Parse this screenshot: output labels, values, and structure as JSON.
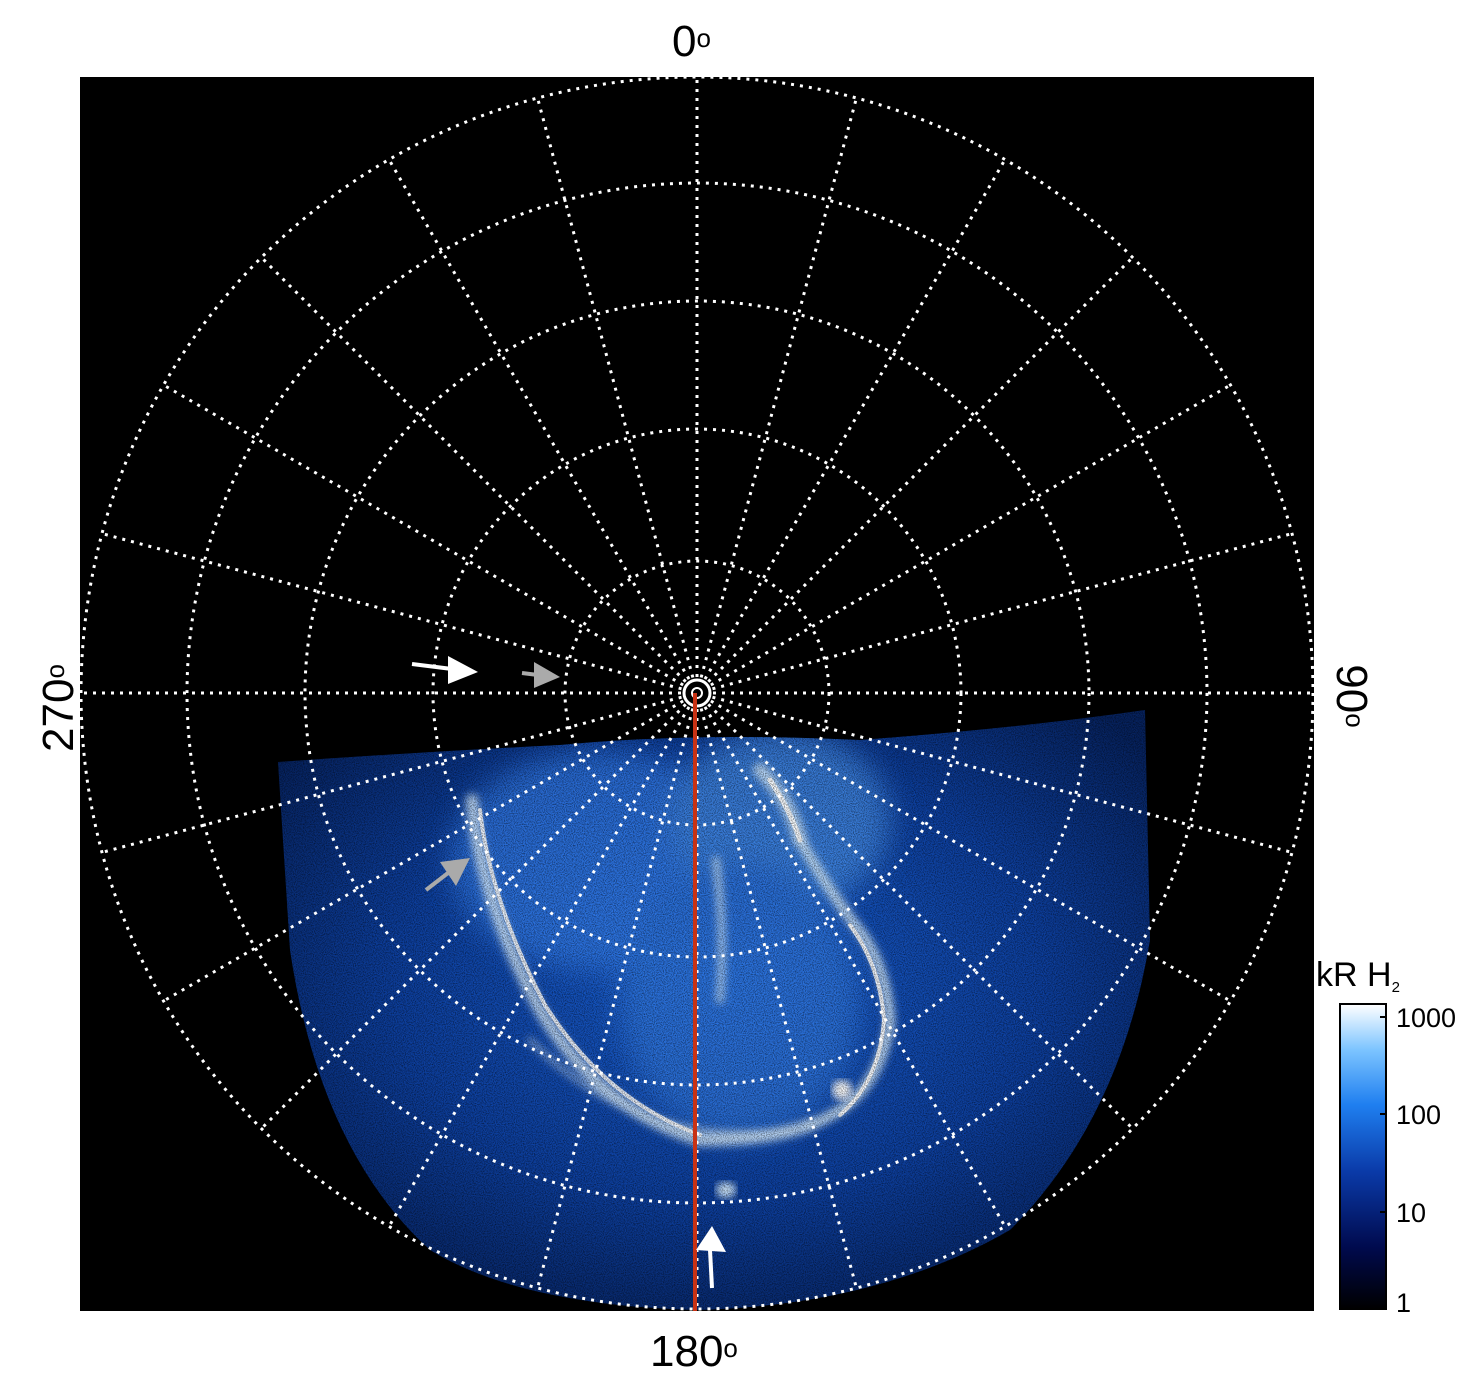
{
  "figure": {
    "direction_labels": {
      "top": "0",
      "right": "90",
      "bottom": "180",
      "left": "270",
      "degree_symbol": "o"
    },
    "colorbar": {
      "title_main": "kR H",
      "title_sub": "2",
      "ticks": [
        "1000",
        "100",
        "10",
        "1"
      ],
      "scale": "log",
      "range": [
        1,
        1500
      ],
      "colors": [
        "#000000",
        "#000a4d",
        "#0a3aa8",
        "#1f7ff0",
        "#7cc4ff",
        "#ffffff"
      ]
    },
    "image": {
      "description_colors": {
        "background": "#000000",
        "grid": "#ffffff",
        "meridian_line": "#c83214"
      }
    }
  }
}
